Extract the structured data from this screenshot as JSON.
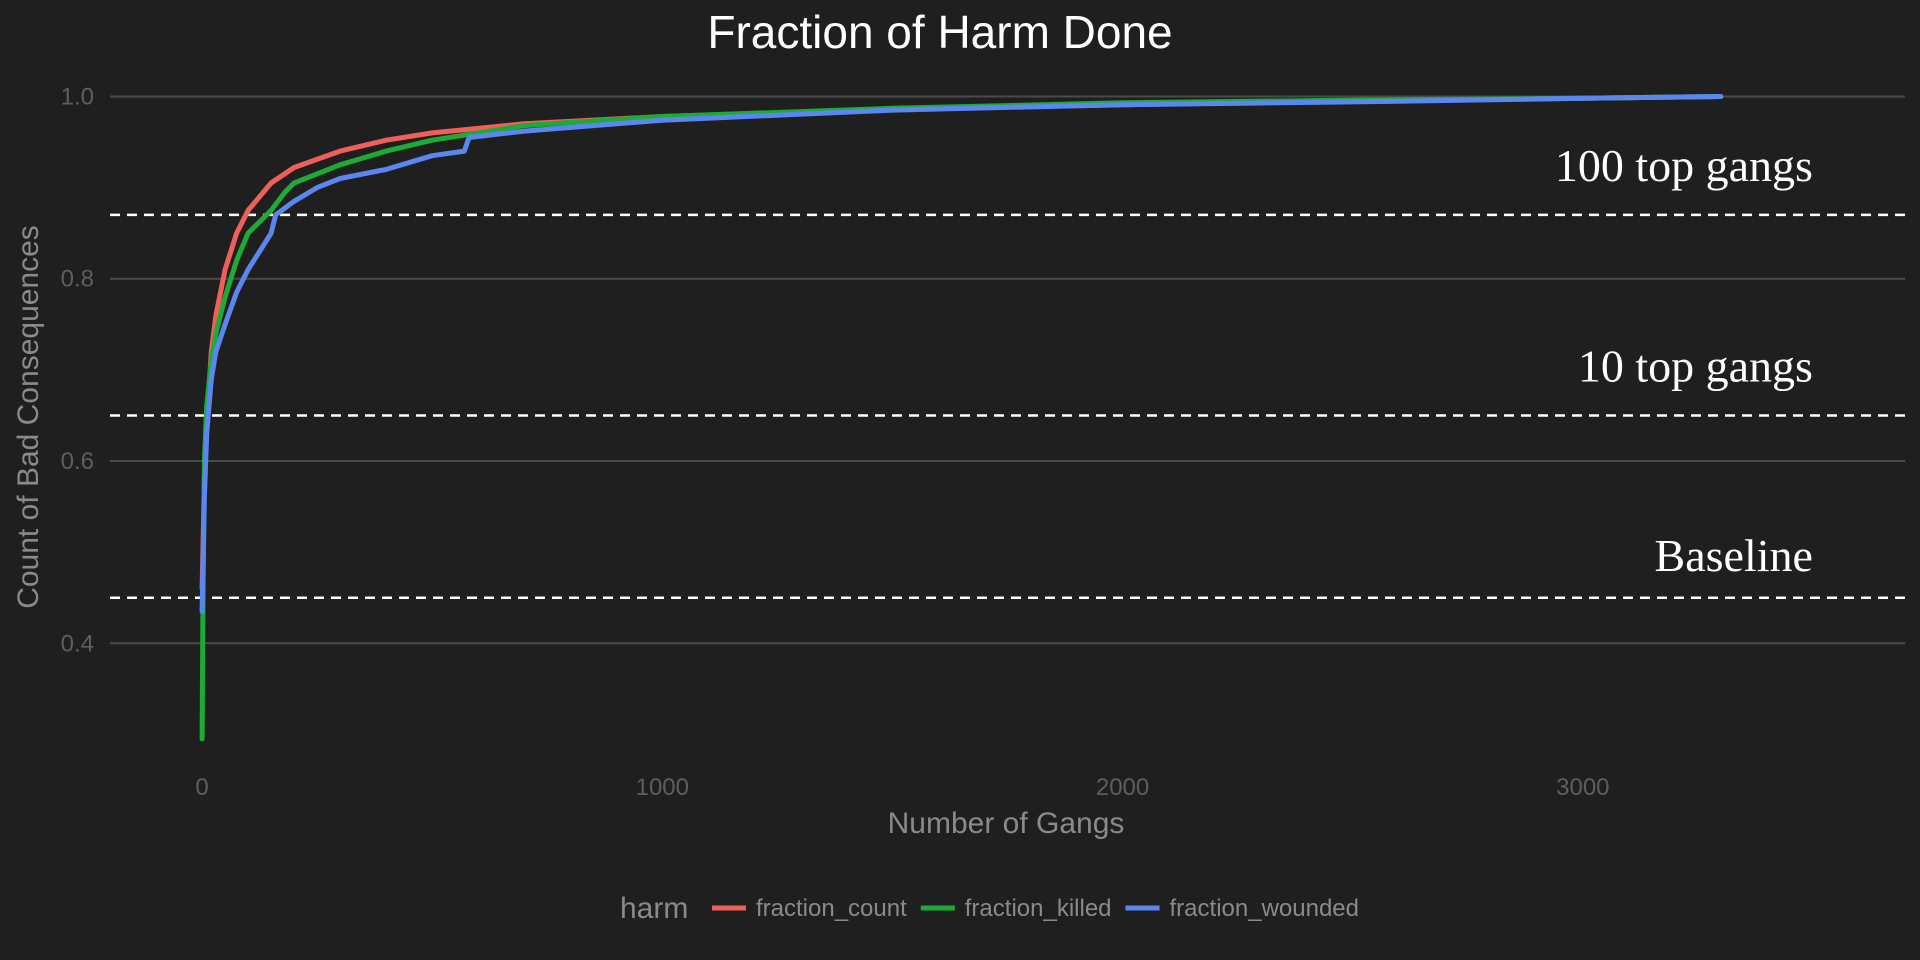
{
  "chart_data": {
    "type": "line",
    "title": "Fraction of Harm Done",
    "xlabel": "Number of Gangs",
    "ylabel": "Count of Bad Consequences",
    "xlim": [
      -200,
      3700
    ],
    "ylim": [
      0.25,
      1.04
    ],
    "x_ticks": [
      0,
      1000,
      2000,
      3000
    ],
    "x_tick_labels": [
      "0",
      "1000",
      "2000",
      "3000"
    ],
    "y_ticks": [
      0.4,
      0.6,
      0.8,
      1.0
    ],
    "y_tick_labels": [
      "0.4",
      "0.6",
      "0.8",
      "1.0"
    ],
    "grid": "horizontal",
    "hlines": [
      {
        "y": 0.87,
        "label": "100 top gangs",
        "label_y": 0.925
      },
      {
        "y": 0.65,
        "label": "10 top gangs",
        "label_y": 0.705
      },
      {
        "y": 0.45,
        "label": "Baseline",
        "label_y": 0.497
      }
    ],
    "hline_label_x": 3500,
    "legend": {
      "title": "harm",
      "position": "bottom"
    },
    "series": [
      {
        "name": "fraction_count",
        "color": "#f0605a",
        "x": [
          0,
          5,
          10,
          20,
          30,
          50,
          75,
          100,
          150,
          200,
          300,
          400,
          500,
          700,
          1000,
          1500,
          2000,
          2500,
          3000,
          3300
        ],
        "y": [
          0.46,
          0.58,
          0.64,
          0.72,
          0.76,
          0.81,
          0.85,
          0.875,
          0.905,
          0.922,
          0.94,
          0.952,
          0.96,
          0.97,
          0.978,
          0.986,
          0.991,
          0.995,
          0.998,
          1.0
        ]
      },
      {
        "name": "fraction_killed",
        "color": "#1daa36",
        "x": [
          0,
          2,
          5,
          10,
          20,
          30,
          50,
          75,
          100,
          150,
          180,
          200,
          300,
          400,
          500,
          700,
          1000,
          1500,
          2000,
          2500,
          3000,
          3300
        ],
        "y": [
          0.295,
          0.45,
          0.6,
          0.66,
          0.71,
          0.74,
          0.78,
          0.82,
          0.85,
          0.875,
          0.895,
          0.905,
          0.925,
          0.94,
          0.952,
          0.968,
          0.978,
          0.987,
          0.993,
          0.996,
          0.998,
          1.0
        ]
      },
      {
        "name": "fraction_wounded",
        "color": "#5b86f0",
        "x": [
          0,
          5,
          10,
          20,
          30,
          50,
          75,
          100,
          150,
          160,
          200,
          250,
          300,
          400,
          500,
          570,
          580,
          700,
          1000,
          1500,
          2000,
          2500,
          3000,
          3300
        ],
        "y": [
          0.435,
          0.56,
          0.63,
          0.69,
          0.72,
          0.75,
          0.785,
          0.81,
          0.85,
          0.87,
          0.885,
          0.9,
          0.91,
          0.92,
          0.935,
          0.94,
          0.955,
          0.962,
          0.974,
          0.985,
          0.991,
          0.994,
          0.998,
          1.0
        ]
      }
    ]
  }
}
